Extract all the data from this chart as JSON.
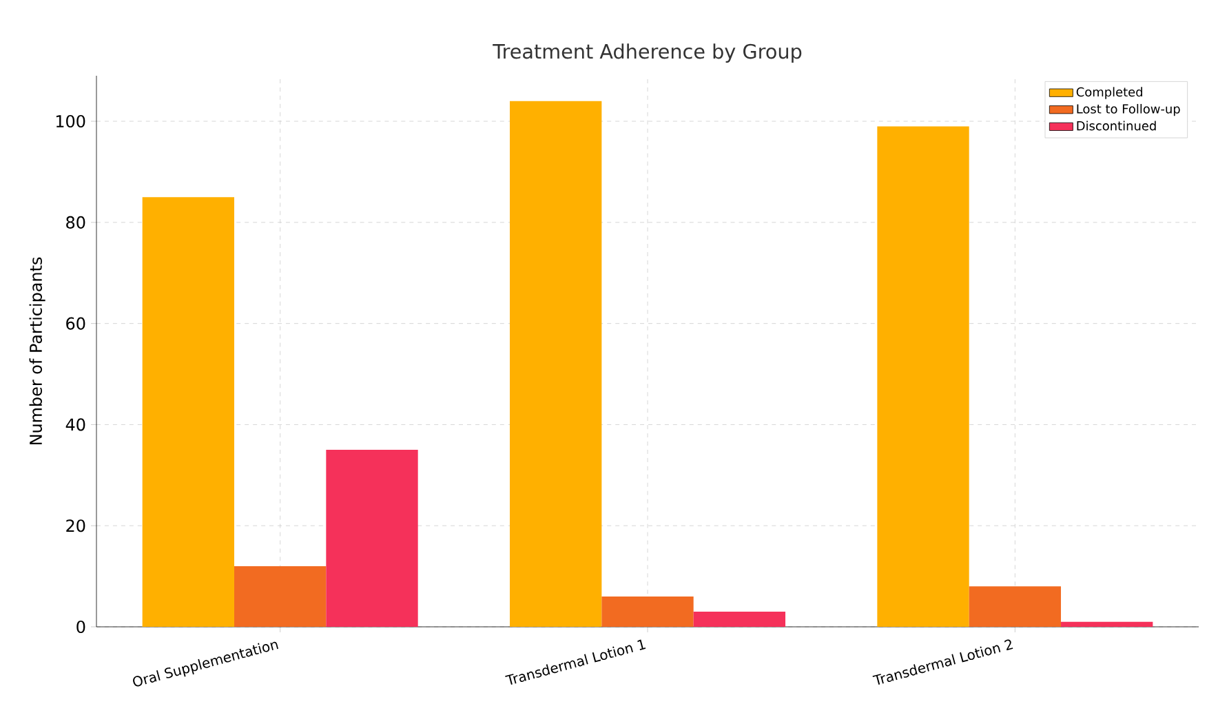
{
  "chart_data": {
    "type": "bar",
    "title": "Treatment Adherence by Group",
    "ylabel": "Number of Participants",
    "categories": [
      "Oral Supplementation",
      "Transdermal Lotion 1",
      "Transdermal Lotion 2"
    ],
    "series": [
      {
        "name": "Completed",
        "color": "#ffb000",
        "values": [
          85,
          104,
          99
        ]
      },
      {
        "name": "Lost to Follow-up",
        "color": "#f26b21",
        "values": [
          12,
          6,
          8
        ]
      },
      {
        "name": "Discontinued",
        "color": "#f5315a",
        "values": [
          35,
          3,
          1
        ]
      }
    ],
    "ylim": [
      0,
      109
    ],
    "yticks": [
      0,
      20,
      40,
      60,
      80,
      100
    ],
    "grid": true,
    "legend": "top right"
  }
}
